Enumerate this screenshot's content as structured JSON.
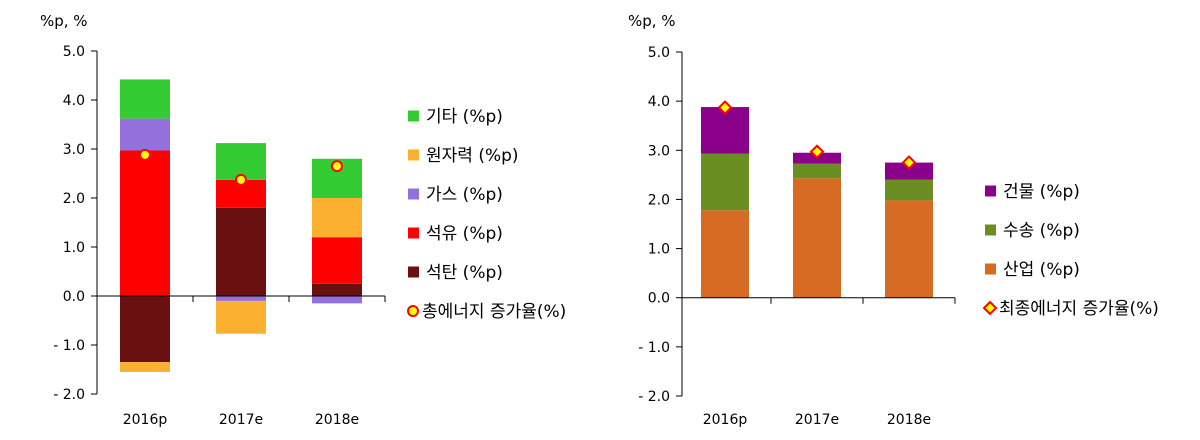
{
  "chart_data": [
    {
      "type": "bar",
      "stacked": true,
      "unit_label": "%p, %",
      "categories": [
        "2016p",
        "2017e",
        "2018e"
      ],
      "ylim": [
        -2.0,
        5.0
      ],
      "yticks": [
        "5.0",
        "4.0",
        "3.0",
        "2.0",
        "1.0",
        "0.0",
        "- 1.0",
        "- 2.0"
      ],
      "ytick_values": [
        5,
        4,
        3,
        2,
        1,
        0,
        -1,
        -2
      ],
      "grid": false,
      "legend_position": "right",
      "series": [
        {
          "name": "석탄 (%p)",
          "color": "#6B1010",
          "values": [
            -1.35,
            1.8,
            0.25
          ]
        },
        {
          "name": "석유 (%p)",
          "color": "#FF0000",
          "values": [
            2.97,
            0.57,
            0.95
          ]
        },
        {
          "name": "가스 (%p)",
          "color": "#9370DB",
          "values": [
            0.65,
            -0.1,
            -0.15
          ]
        },
        {
          "name": "원자력 (%p)",
          "color": "#FBB12F",
          "values": [
            -0.2,
            -0.67,
            0.8
          ]
        },
        {
          "name": "기타 (%p)",
          "color": "#33CC33",
          "values": [
            0.8,
            0.75,
            0.8
          ]
        }
      ],
      "marker_series": {
        "name": "총에너지 증가율(%)",
        "shape": "circle",
        "fill": "#FFFF00",
        "stroke": "#FF0000",
        "values": [
          2.88,
          2.37,
          2.65
        ]
      }
    },
    {
      "type": "bar",
      "stacked": true,
      "unit_label": "%p, %",
      "categories": [
        "2016p",
        "2017e",
        "2018e"
      ],
      "ylim": [
        -2.0,
        5.0
      ],
      "yticks": [
        "5.0",
        "4.0",
        "3.0",
        "2.0",
        "1.0",
        "0.0",
        "- 1.0",
        "- 2.0"
      ],
      "ytick_values": [
        5,
        4,
        3,
        2,
        1,
        0,
        -1,
        -2
      ],
      "grid": false,
      "legend_position": "right",
      "series": [
        {
          "name": "산업 (%p)",
          "color": "#D86B24",
          "values": [
            1.78,
            2.43,
            1.98
          ]
        },
        {
          "name": "수송 (%p)",
          "color": "#6B8E23",
          "values": [
            1.15,
            0.3,
            0.42
          ]
        },
        {
          "name": "건물 (%p)",
          "color": "#8B008B",
          "values": [
            0.95,
            0.22,
            0.35
          ]
        }
      ],
      "marker_series": {
        "name": "최종에너지 증가율(%)",
        "shape": "diamond",
        "fill": "#FFFF00",
        "stroke": "#FF0000",
        "values": [
          3.87,
          2.97,
          2.75
        ]
      }
    }
  ]
}
